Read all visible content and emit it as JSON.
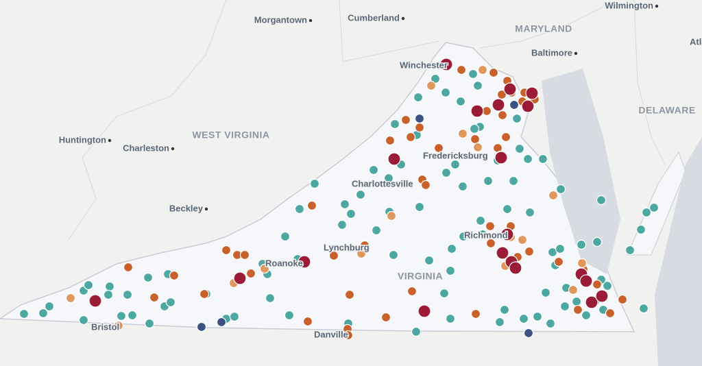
{
  "map": {
    "cities": [
      "Morgantown",
      "Cumberland",
      "Wilmington",
      "Baltimore",
      "Winchester",
      "Huntington",
      "Charleston",
      "Beckley",
      "Fredericksburg",
      "Charlottesville",
      "Richmond",
      "Lynchburg",
      "Roanoke",
      "Bristol",
      "Danville",
      "Atlantic City"
    ],
    "states": [
      "MARYLAND",
      "WEST VIRGINIA",
      "DELAWARE",
      "VIRGINIA"
    ]
  }
}
